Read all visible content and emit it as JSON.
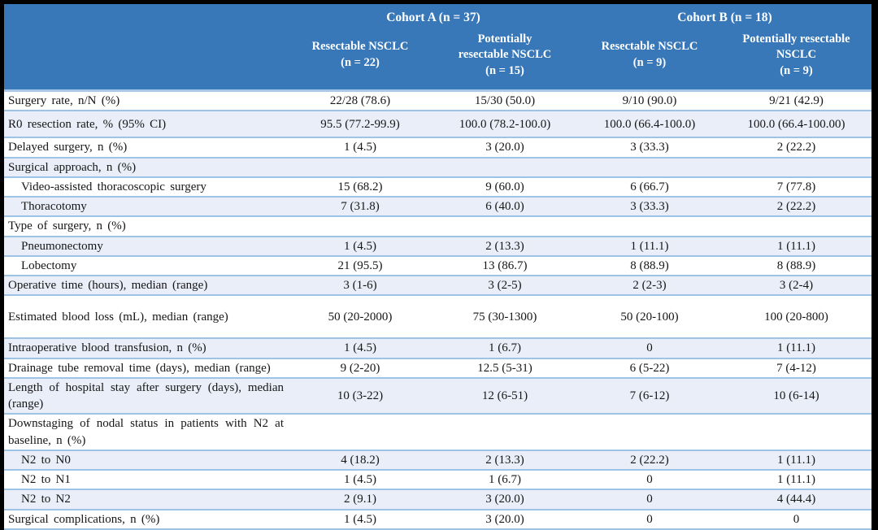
{
  "table": {
    "cohorts": [
      {
        "label": "Cohort A (n = 37)"
      },
      {
        "label": "Cohort B (n = 18)"
      }
    ],
    "columns": [
      "Resectable NSCLC\n(n = 22)",
      "Potentially\nresectable NSCLC\n(n = 15)",
      "Resectable NSCLC\n(n = 9)",
      "Potentially resectable\nNSCLC\n(n = 9)"
    ],
    "rows": [
      {
        "label": "Surgery rate, n/N (%)",
        "indent": false,
        "values": [
          "22/28 (78.6)",
          "15/30 (50.0)",
          "9/10 (90.0)",
          "9/21 (42.9)"
        ]
      },
      {
        "label": "R0 resection rate, % (95% CI)",
        "indent": false,
        "values": [
          "95.5 (77.2-99.9)",
          "100.0 (78.2-100.0)",
          "100.0 (66.4-100.0)",
          "100.0 (66.4-100.00)"
        ]
      },
      {
        "label": "Delayed surgery, n (%)",
        "indent": false,
        "values": [
          "1 (4.5)",
          "3 (20.0)",
          "3 (33.3)",
          "2 (22.2)"
        ]
      },
      {
        "label": "Surgical approach, n (%)",
        "indent": false,
        "values": [
          "",
          "",
          "",
          ""
        ]
      },
      {
        "label": "Video-assisted thoracoscopic surgery",
        "indent": true,
        "values": [
          "15 (68.2)",
          "9 (60.0)",
          "6 (66.7)",
          "7 (77.8)"
        ]
      },
      {
        "label": "Thoracotomy",
        "indent": true,
        "values": [
          "7 (31.8)",
          "6 (40.0)",
          "3 (33.3)",
          "2 (22.2)"
        ]
      },
      {
        "label": "Type of surgery, n (%)",
        "indent": false,
        "values": [
          "",
          "",
          "",
          ""
        ]
      },
      {
        "label": "Pneumonectomy",
        "indent": true,
        "values": [
          "1 (4.5)",
          "2 (13.3)",
          "1 (11.1)",
          "1 (11.1)"
        ]
      },
      {
        "label": "Lobectomy",
        "indent": true,
        "values": [
          "21 (95.5)",
          "13 (86.7)",
          "8 (88.9)",
          "8 (88.9)"
        ]
      },
      {
        "label": "Operative time (hours), median (range)",
        "indent": false,
        "values": [
          "3 (1-6)",
          "3 (2-5)",
          "2 (2-3)",
          "3 (2-4)"
        ]
      },
      {
        "label": "Estimated blood loss (mL), median (range)",
        "indent": false,
        "values": [
          "50 (20-2000)",
          "75 (30-1300)",
          "50 (20-100)",
          "100 (20-800)"
        ]
      },
      {
        "label": "Intraoperative blood transfusion, n (%)",
        "indent": false,
        "values": [
          "1 (4.5)",
          "1 (6.7)",
          "0",
          "1 (11.1)"
        ]
      },
      {
        "label": "Drainage tube removal time (days), median (range)",
        "indent": false,
        "values": [
          "9 (2-20)",
          "12.5 (5-31)",
          "6 (5-22)",
          "7 (4-12)"
        ]
      },
      {
        "label": "Length of hospital stay after surgery (days), median (range)",
        "indent": false,
        "values": [
          "10 (3-22)",
          "12 (6-51)",
          "7 (6-12)",
          "10 (6-14)"
        ]
      },
      {
        "label": "Downstaging of nodal status in patients with N2 at baseline, n (%)",
        "indent": false,
        "values": [
          "",
          "",
          "",
          ""
        ]
      },
      {
        "label": "N2 to N0",
        "indent": true,
        "values": [
          "4 (18.2)",
          "2 (13.3)",
          "2 (22.2)",
          "1 (11.1)"
        ]
      },
      {
        "label": "N2 to N1",
        "indent": true,
        "values": [
          "1 (4.5)",
          "1 (6.7)",
          "0",
          "1 (11.1)"
        ]
      },
      {
        "label": "N2 to N2",
        "indent": true,
        "values": [
          "2 (9.1)",
          "3 (20.0)",
          "0",
          "4 (44.4)"
        ]
      },
      {
        "label": "Surgical complications, n (%)",
        "indent": false,
        "values": [
          "1 (4.5)",
          "3 (20.0)",
          "0",
          "0"
        ]
      }
    ],
    "colors": {
      "header_bg": "#3878b9",
      "header_text": "#ffffff",
      "row_stripe": "#e9eef8",
      "row_border": "#9dc3e6",
      "outer_frame": "#000000"
    }
  }
}
